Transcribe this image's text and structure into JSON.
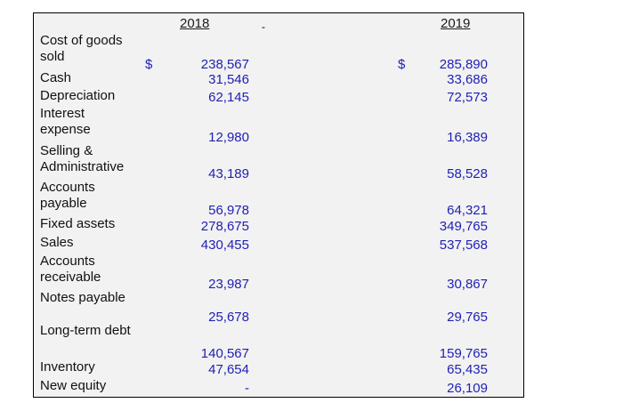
{
  "header": {
    "columns": [
      "2018",
      "2019"
    ],
    "mark": "-"
  },
  "table": {
    "currency": "$",
    "rows": [
      [
        "Cost of goods sold",
        "238,567",
        "285,890"
      ],
      [
        "Cash",
        "31,546",
        "33,686"
      ],
      [
        "Depreciation",
        "62,145",
        "72,573"
      ],
      [
        "Interest expense",
        "12,980",
        "16,389"
      ],
      [
        "Selling & Administrative",
        "43,189",
        "58,528"
      ],
      [
        "Accounts payable",
        "56,978",
        "64,321"
      ],
      [
        "Fixed assets",
        "278,675",
        "349,765"
      ],
      [
        "Sales",
        "430,455",
        "537,568"
      ],
      [
        "Accounts receivable",
        "23,987",
        "30,867"
      ],
      [
        "Notes payable",
        "25,678",
        "29,765"
      ],
      [
        "Long-term debt",
        "140,567",
        "159,765"
      ],
      [
        "Inventory",
        "47,654",
        "65,435"
      ],
      [
        "New equity",
        "-",
        "26,109"
      ]
    ]
  }
}
